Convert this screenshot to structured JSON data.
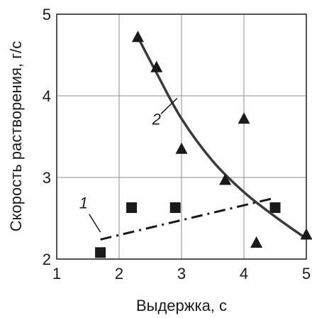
{
  "chart_data": {
    "type": "scatter",
    "xlabel": "Выдержка, с",
    "ylabel": "Скорость растворения, г/с",
    "xlim": [
      1,
      5
    ],
    "ylim": [
      2,
      5
    ],
    "xticks": [
      "1",
      "2",
      "3",
      "4",
      "5"
    ],
    "yticks": [
      "2",
      "3",
      "4",
      "5"
    ],
    "grid": true,
    "series": [
      {
        "name": "1",
        "marker": "square",
        "color": "#1a1a1a",
        "points": [
          [
            1.7,
            2.08
          ],
          [
            2.2,
            2.63
          ],
          [
            2.9,
            2.63
          ],
          [
            4.5,
            2.63
          ]
        ],
        "trend": {
          "style": "dash-dot",
          "points": [
            [
              1.7,
              2.24
            ],
            [
              4.5,
              2.75
            ]
          ]
        }
      },
      {
        "name": "2",
        "marker": "triangle",
        "color": "#1a1a1a",
        "points": [
          [
            2.3,
            4.72
          ],
          [
            2.6,
            4.35
          ],
          [
            3.0,
            3.35
          ],
          [
            3.7,
            2.97
          ],
          [
            4.0,
            3.72
          ],
          [
            4.2,
            2.2
          ],
          [
            5.0,
            2.3
          ]
        ],
        "trend": {
          "style": "solid",
          "points": [
            [
              2.3,
              4.72
            ],
            [
              2.6,
              4.28
            ],
            [
              3.0,
              3.72
            ],
            [
              3.5,
              3.2
            ],
            [
              4.0,
              2.82
            ],
            [
              4.5,
              2.52
            ],
            [
              5.0,
              2.25
            ]
          ]
        }
      }
    ],
    "annotations": [
      {
        "text": "1",
        "series": "1"
      },
      {
        "text": "2",
        "series": "2"
      }
    ]
  }
}
